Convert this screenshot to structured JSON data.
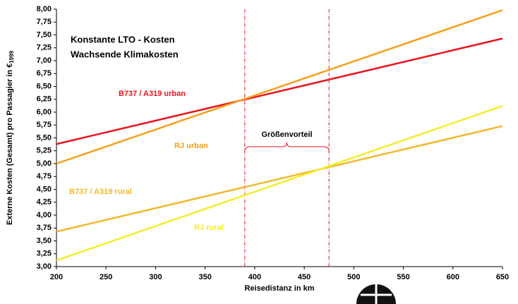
{
  "chart_data": {
    "type": "line",
    "title_lines": [
      "Konstante LTO - Kosten",
      "Wachsende Klimakosten"
    ],
    "x_label": "Reisedistanz in km",
    "y_label": "Externe Kosten (Gesamt) pro Passagier in €",
    "y_label_sub": "1999",
    "x": [
      200,
      650
    ],
    "series": [
      {
        "name": "B737 / A319 urban",
        "color": "#e8141c",
        "values": [
          5.38,
          7.43
        ]
      },
      {
        "name": "RJ urban",
        "color": "#f5a01a",
        "values": [
          5.0,
          7.98
        ]
      },
      {
        "name": "B737 / A319 rural",
        "color": "#f2b82c",
        "values": [
          3.68,
          5.73
        ]
      },
      {
        "name": "RJ rural",
        "color": "#f2ee2a",
        "values": [
          3.12,
          6.12
        ]
      }
    ],
    "annotation": "Größenvorteil",
    "vlines": [
      390,
      475
    ],
    "xlim": [
      200,
      650
    ],
    "xticks": [
      200,
      250,
      300,
      350,
      400,
      450,
      500,
      550,
      600,
      650
    ],
    "ylim": [
      3,
      8
    ],
    "yticks": [
      {
        "value": 3,
        "label": "3,00"
      },
      {
        "value": 3.25,
        "label": "3,25"
      },
      {
        "value": 3.5,
        "label": "3,50"
      },
      {
        "value": 3.75,
        "label": "3,75"
      },
      {
        "value": 4,
        "label": "4,00"
      },
      {
        "value": 4.25,
        "label": "4,25"
      },
      {
        "value": 4.5,
        "label": "4,50"
      },
      {
        "value": 4.75,
        "label": "4,75"
      },
      {
        "value": 5,
        "label": "5,00"
      },
      {
        "value": 5.25,
        "label": "5,25"
      },
      {
        "value": 5.5,
        "label": "5,50"
      },
      {
        "value": 5.75,
        "label": "5,75"
      },
      {
        "value": 6,
        "label": "6,00"
      },
      {
        "value": 6.25,
        "label": "6,25"
      },
      {
        "value": 6.5,
        "label": "6,50"
      },
      {
        "value": 6.75,
        "label": "6,75"
      },
      {
        "value": 7,
        "label": "7,00"
      },
      {
        "value": 7.25,
        "label": "7,25"
      },
      {
        "value": 7.5,
        "label": "7,50"
      },
      {
        "value": 7.75,
        "label": "7,75"
      },
      {
        "value": 8,
        "label": "8,00"
      }
    ],
    "grid": false
  }
}
